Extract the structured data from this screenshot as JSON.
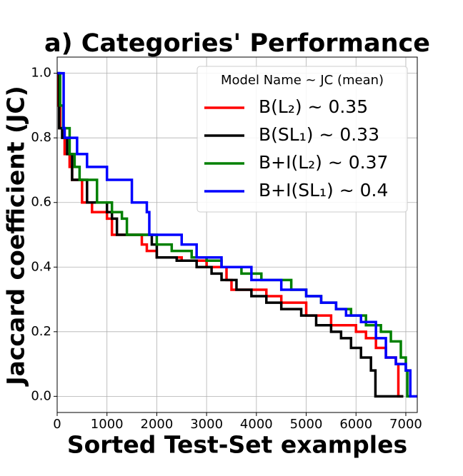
{
  "chart_data": {
    "type": "line",
    "step": "post",
    "title": "a) Categories' Performance",
    "xlabel": "Sorted Test-Set examples",
    "ylabel": "Jaccard coefficient (JC)",
    "legend_title": "Model Name ~ JC (mean)",
    "legend": "upper right",
    "grid": true,
    "xlim": [
      0,
      7230
    ],
    "ylim": [
      -0.05,
      1.05
    ],
    "xticks": [
      0,
      1000,
      2000,
      3000,
      4000,
      5000,
      6000,
      7000
    ],
    "yticks": [
      {
        "value": 0,
        "label": "0.0"
      },
      0.2,
      0.4,
      0.6,
      0.8,
      {
        "value": 1,
        "label": "1.0"
      }
    ],
    "series": [
      {
        "name": "B(L₂) ~ 0.35",
        "color": "#ff0000",
        "x": [
          0,
          30,
          60,
          150,
          250,
          300,
          500,
          700,
          1000,
          1100,
          1700,
          1800,
          2000,
          2500,
          3000,
          3400,
          3500,
          4200,
          4500,
          5000,
          5500,
          6000,
          6200,
          6400,
          6600,
          6800,
          6850,
          6950
        ],
        "values": [
          1,
          0.9,
          0.83,
          0.75,
          0.71,
          0.67,
          0.6,
          0.57,
          0.55,
          0.5,
          0.47,
          0.45,
          0.43,
          0.42,
          0.4,
          0.36,
          0.33,
          0.31,
          0.29,
          0.25,
          0.22,
          0.2,
          0.18,
          0.15,
          0.12,
          0.1,
          0,
          0
        ]
      },
      {
        "name": "B(SL₁) ~ 0.33",
        "color": "#000000",
        "x": [
          0,
          40,
          100,
          200,
          300,
          600,
          1000,
          1100,
          1200,
          1900,
          2000,
          2400,
          2800,
          3100,
          3300,
          3600,
          3900,
          4200,
          4500,
          4900,
          5200,
          5500,
          5700,
          5900,
          6100,
          6300,
          6390,
          6950
        ],
        "values": [
          1,
          0.83,
          0.8,
          0.75,
          0.67,
          0.6,
          0.57,
          0.55,
          0.5,
          0.47,
          0.43,
          0.42,
          0.4,
          0.38,
          0.36,
          0.33,
          0.31,
          0.29,
          0.27,
          0.25,
          0.22,
          0.2,
          0.18,
          0.15,
          0.12,
          0.08,
          0,
          0
        ]
      },
      {
        "name": "B+I(L₂) ~ 0.37",
        "color": "#008000",
        "x": [
          0,
          60,
          120,
          250,
          350,
          450,
          800,
          1100,
          1300,
          1400,
          2000,
          2300,
          2700,
          3000,
          3300,
          3700,
          4100,
          4700,
          5000,
          5300,
          5600,
          5900,
          6200,
          6500,
          6700,
          6900,
          7000,
          7030,
          7100
        ],
        "values": [
          1,
          0.9,
          0.83,
          0.75,
          0.71,
          0.67,
          0.6,
          0.57,
          0.55,
          0.5,
          0.47,
          0.45,
          0.43,
          0.42,
          0.4,
          0.38,
          0.36,
          0.33,
          0.31,
          0.29,
          0.27,
          0.25,
          0.22,
          0.2,
          0.17,
          0.12,
          0.08,
          0,
          0
        ]
      },
      {
        "name": "B+I(SL₁) ~ 0.4",
        "color": "#0000ff",
        "x": [
          0,
          130,
          150,
          400,
          600,
          1000,
          1500,
          1800,
          1850,
          2500,
          2800,
          3300,
          3900,
          4500,
          5000,
          5300,
          5600,
          5800,
          6100,
          6400,
          6600,
          6800,
          7000,
          7090,
          7230
        ],
        "values": [
          1,
          0.83,
          0.8,
          0.75,
          0.71,
          0.67,
          0.6,
          0.57,
          0.5,
          0.47,
          0.43,
          0.4,
          0.36,
          0.33,
          0.31,
          0.29,
          0.27,
          0.25,
          0.23,
          0.18,
          0.12,
          0.1,
          0.08,
          0,
          0
        ]
      }
    ]
  }
}
